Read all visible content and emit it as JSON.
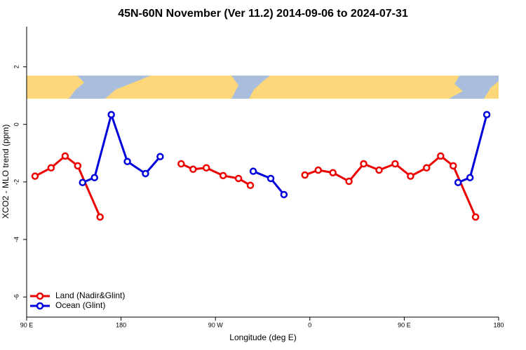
{
  "chart_data": {
    "type": "line",
    "title": "45N-60N November (Ver 11.2)   2014-09-06 to 2024-07-31",
    "xlabel": "Longitude (deg E)",
    "ylabel": "XCO2 - MLO trend (ppm)",
    "xlim": [
      90,
      540
    ],
    "ylim": [
      -6.7,
      3.4
    ],
    "xticks": [
      {
        "value": 90,
        "label": "90 E"
      },
      180,
      {
        "value": 270,
        "label": "90 W"
      },
      {
        "value": 360,
        "label": "0"
      },
      {
        "value": 450,
        "label": "90 E"
      },
      {
        "value": 540,
        "label": "180"
      }
    ],
    "yticks": [
      2,
      0,
      -2,
      -4,
      -6
    ],
    "legend": "bottom-left",
    "series": [
      {
        "name": "Land (Nadir&Glint)",
        "color": "#ee0000",
        "x": [
          98,
          113.3,
          126.7,
          138.7,
          160,
          200,
          237.3,
          248.7,
          261.3,
          277.3,
          292,
          303.3,
          330,
          355.3,
          368,
          382,
          397.3,
          411.3,
          426,
          441.3,
          456,
          471.3,
          484.7,
          496.7,
          518
        ],
        "values": [
          -1.8,
          -1.51,
          -1.1,
          -1.44,
          -3.22,
          null,
          -1.37,
          -1.56,
          -1.51,
          -1.78,
          -1.88,
          -2.12,
          null,
          -1.76,
          -1.59,
          -1.68,
          -1.98,
          -1.37,
          -1.59,
          -1.37,
          -1.8,
          -1.51,
          -1.1,
          -1.44,
          -3.22
        ]
      },
      {
        "name": "Ocean (Glint)",
        "color": "#0000dd",
        "x": [
          143.3,
          154.7,
          170.7,
          186,
          203.3,
          217.3,
          260,
          306,
          322.7,
          335.3,
          420,
          501.3,
          512.7,
          528.7
        ],
        "values": [
          -2.02,
          -1.85,
          0.34,
          -1.29,
          -1.71,
          -1.12,
          null,
          -1.63,
          -1.88,
          -2.44,
          null,
          -2.02,
          -1.85,
          0.34
        ]
      }
    ]
  }
}
